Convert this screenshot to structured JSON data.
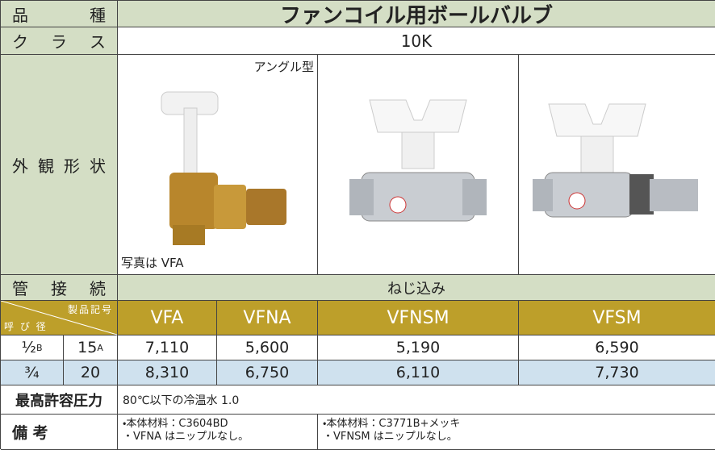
{
  "header": {
    "label": "品　種",
    "title": "ファンコイル用ボールバルブ"
  },
  "class": {
    "label": "ク ラ ス",
    "value": "10K"
  },
  "appearance": {
    "label": "外観形状",
    "note_top": "アングル型",
    "note_bottom": "写真は VFA"
  },
  "connection": {
    "label": "管 接 続",
    "value": "ねじ込み"
  },
  "table": {
    "corner_top": "製品記号",
    "corner_bottom": "呼 び 径",
    "columns": [
      "VFA",
      "VFNA",
      "VFNSM",
      "VFSM"
    ],
    "rows": [
      {
        "inch": "½",
        "inch_unit": "B",
        "mm": "15",
        "mm_unit": "A",
        "values": [
          "7,110",
          "5,600",
          "5,190",
          "6,590"
        ]
      },
      {
        "inch": "¾",
        "mm": "20",
        "values": [
          "8,310",
          "6,750",
          "6,110",
          "7,730"
        ]
      }
    ]
  },
  "pressure": {
    "label": "最高許容圧力",
    "value": "80℃以下の冷温水 1.0"
  },
  "remarks": {
    "label": "備 考",
    "notes": [
      [
        "・本体材料：C3604BD",
        "・VFNA はニップルなし。"
      ],
      [
        "・本体材料：C3771B+メッキ",
        "・VFNSM はニップルなし。"
      ]
    ]
  }
}
